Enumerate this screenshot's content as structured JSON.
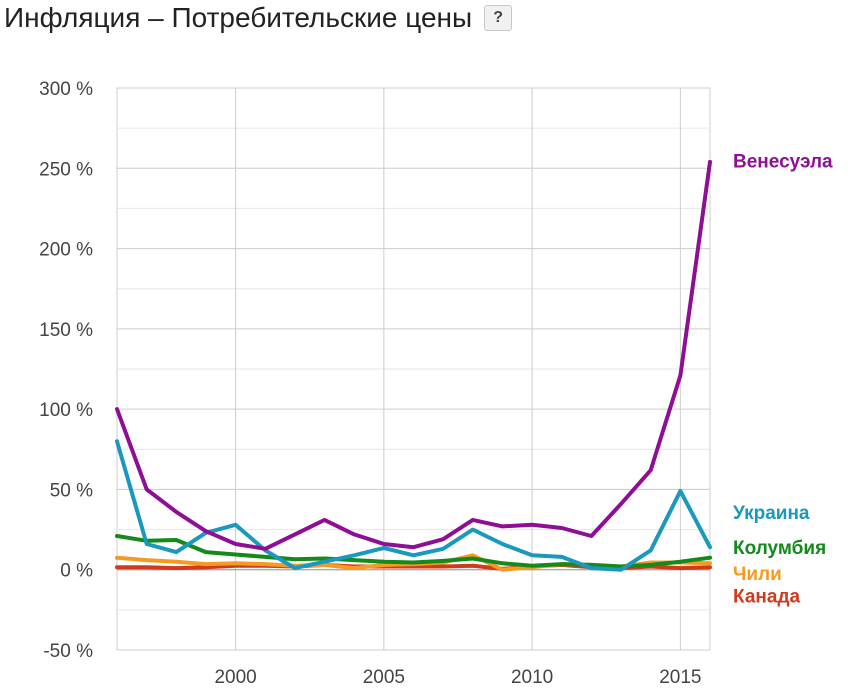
{
  "header": {
    "title": "Инфляция – Потребительские цены",
    "help_label": "?"
  },
  "chart_data": {
    "type": "line",
    "title": "Инфляция – Потребительские цены",
    "xlabel": "",
    "ylabel": "",
    "xlim": [
      1996,
      2016
    ],
    "ylim": [
      -50,
      300
    ],
    "y_ticks": [
      -50,
      0,
      50,
      100,
      150,
      200,
      250,
      300
    ],
    "y_tick_labels": [
      "-50 %",
      "0 %",
      "50 %",
      "100 %",
      "150 %",
      "200 %",
      "250 %",
      "300 %"
    ],
    "x_ticks": [
      2000,
      2005,
      2010,
      2015
    ],
    "x_tick_labels": [
      "2000",
      "2005",
      "2010",
      "2015"
    ],
    "grid": true,
    "legend": "inline labels at right end of lines",
    "x": [
      1996,
      1997,
      1998,
      1999,
      2000,
      2001,
      2002,
      2003,
      2004,
      2005,
      2006,
      2007,
      2008,
      2009,
      2010,
      2011,
      2012,
      2013,
      2014,
      2015,
      2016
    ],
    "series": [
      {
        "name": "Венесуэла",
        "color": "#8e0f95",
        "values": [
          100,
          50,
          36,
          24,
          16,
          13,
          22,
          31,
          22,
          16,
          14,
          19,
          31,
          27,
          28,
          26,
          21,
          41,
          62,
          121,
          254
        ]
      },
      {
        "name": "Украина",
        "color": "#1a98bd",
        "values": [
          80,
          16,
          11,
          23,
          28,
          12,
          1,
          5,
          9,
          13.5,
          9,
          13,
          25,
          16,
          9,
          8,
          1,
          0,
          12,
          49,
          14
        ]
      },
      {
        "name": "Колумбия",
        "color": "#138a1a",
        "values": [
          21,
          18,
          18.5,
          11,
          9.5,
          8,
          6.5,
          7,
          6,
          5,
          4.5,
          5.5,
          7,
          4,
          2.5,
          3.5,
          3,
          2,
          3,
          5,
          7.5
        ]
      },
      {
        "name": "Чили",
        "color": "#f59b22",
        "values": [
          7.5,
          6,
          5,
          3.5,
          4,
          3.5,
          2.5,
          3,
          1,
          3,
          3.5,
          4.5,
          9,
          0,
          1.5,
          3.5,
          3,
          2,
          4.5,
          4.5,
          4
        ]
      },
      {
        "name": "Канада",
        "color": "#d13b1d",
        "values": [
          1.5,
          1.5,
          1,
          1.5,
          2.5,
          2.5,
          2,
          3,
          2,
          2,
          2,
          2,
          2.5,
          0.5,
          2,
          3,
          1.5,
          1,
          2,
          1,
          1.5
        ]
      }
    ],
    "series_label_ys": [
      255,
      36,
      14,
      -2,
      -16
    ]
  }
}
